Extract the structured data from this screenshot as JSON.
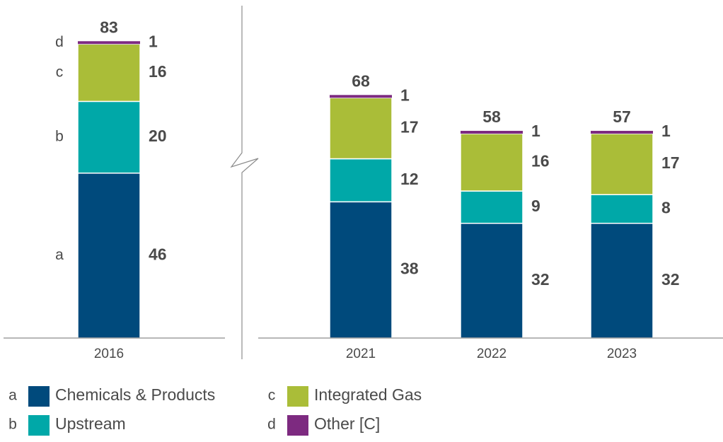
{
  "chart_data": {
    "type": "bar",
    "stacked": true,
    "axis_break_after_category": "2016",
    "categories": [
      "2016",
      "2021",
      "2022",
      "2023"
    ],
    "totals": [
      "83",
      "68",
      "58",
      "57"
    ],
    "series": [
      {
        "key": "a",
        "name": "Chemicals & Products",
        "color": "#004a7c",
        "values": [
          46,
          38,
          32,
          32
        ]
      },
      {
        "key": "b",
        "name": "Upstream",
        "color": "#00a8a8",
        "values": [
          20,
          12,
          9,
          8
        ]
      },
      {
        "key": "c",
        "name": "Integrated Gas",
        "color": "#aabd38",
        "values": [
          16,
          17,
          16,
          17
        ]
      },
      {
        "key": "d",
        "name": "Other [C]",
        "color": "#7d2a80",
        "values": [
          1,
          1,
          1,
          1
        ]
      }
    ],
    "segment_letters": [
      "a",
      "b",
      "c",
      "d"
    ],
    "legend_placement": "bottom",
    "grid": false,
    "ylim": [
      0,
      83
    ],
    "title": "",
    "xlabel": "",
    "ylabel": ""
  }
}
